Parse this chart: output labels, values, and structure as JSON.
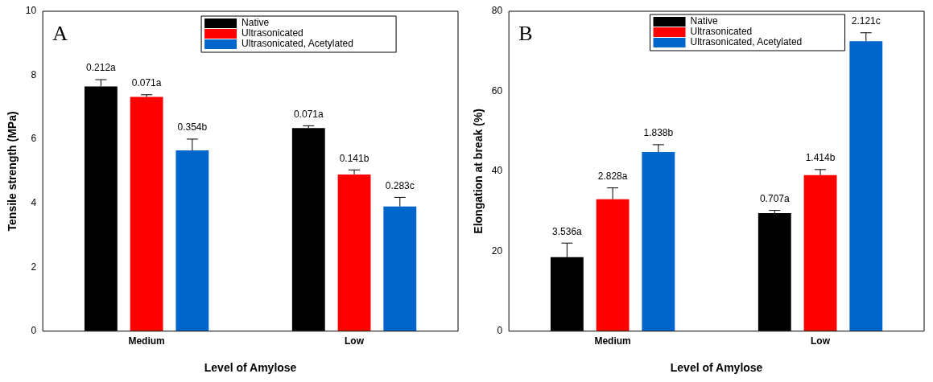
{
  "chart_data": [
    {
      "type": "bar",
      "xlabel": "Level of Amylose",
      "ylabel": "Tensile strength (MPa)",
      "categories": [
        "Medium",
        "Low"
      ],
      "ylim": [
        0,
        10
      ],
      "yticks": [
        0,
        2,
        4,
        6,
        8,
        10
      ],
      "grid": false,
      "legend": "top",
      "annotations": [
        "A",
        "0.212a",
        "0.071a",
        "0.071a",
        "0.141b",
        "0.354b",
        "0.283c"
      ],
      "series": [
        {
          "name": "Native",
          "color": "#000000",
          "values": [
            7.65,
            6.35
          ],
          "errors": [
            0.212,
            0.071
          ]
        },
        {
          "name": "Ultrasonicated",
          "color": "#ff0000",
          "values": [
            7.32,
            4.9
          ],
          "errors": [
            0.071,
            0.141
          ]
        },
        {
          "name": "Ultrasonicated, Acetylated",
          "color": "#0066cc",
          "values": [
            5.65,
            3.9
          ],
          "errors": [
            0.354,
            0.283
          ]
        }
      ]
    },
    {
      "type": "bar",
      "xlabel": "Level of Amylose",
      "ylabel": "Elongation at break (%)",
      "categories": [
        "Medium",
        "Low"
      ],
      "ylim": [
        0,
        80
      ],
      "yticks": [
        0,
        20,
        40,
        60,
        80
      ],
      "grid": false,
      "legend": "top left",
      "annotations": [
        "B",
        "3.536a",
        "0.707a",
        "2.828a",
        "1.414b",
        "1.838b",
        "2.121c"
      ],
      "series": [
        {
          "name": "Native",
          "color": "#000000",
          "values": [
            18.5,
            29.5
          ],
          "errors": [
            3.536,
            0.707
          ]
        },
        {
          "name": "Ultrasonicated",
          "color": "#ff0000",
          "values": [
            33,
            39
          ],
          "errors": [
            2.828,
            1.414
          ]
        },
        {
          "name": "Ultrasonicated, Acetylated",
          "color": "#0066cc",
          "values": [
            44.8,
            72.5
          ],
          "errors": [
            1.838,
            2.121
          ]
        }
      ]
    }
  ]
}
